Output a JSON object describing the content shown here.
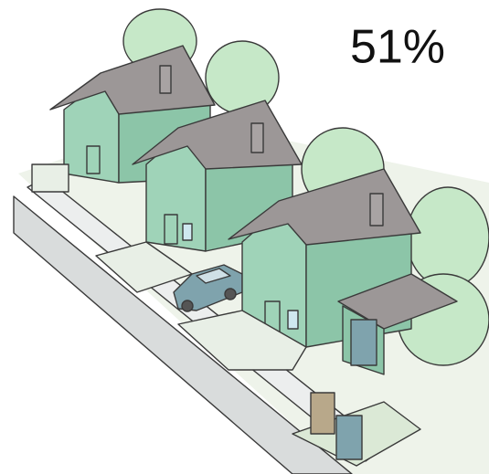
{
  "label": "51%"
}
